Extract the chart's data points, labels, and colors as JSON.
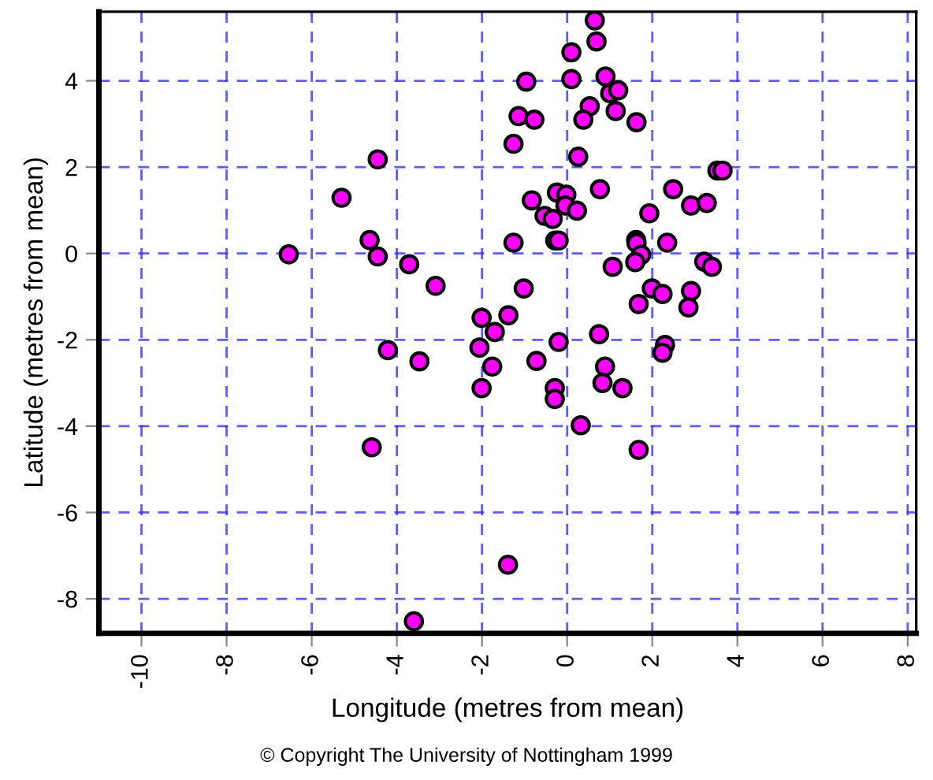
{
  "chart_data": {
    "type": "scatter",
    "xlabel": "Longitude (metres from mean)",
    "ylabel": "Latitude (metres from mean)",
    "annotations": [
      "© Copyright The University of Nottingham 1999"
    ],
    "xlim": [
      -11,
      8.2
    ],
    "ylim": [
      -8.8,
      5.6
    ],
    "xticks": [
      -10,
      -8,
      -6,
      -4,
      -2,
      0,
      2,
      4,
      6,
      8
    ],
    "yticks": [
      -8,
      -6,
      -4,
      -2,
      0,
      2,
      4
    ],
    "grid": true,
    "marker": "circle",
    "series": [
      {
        "color": "#ff00ff",
        "x": [
          -4.45,
          -5.3,
          -6.54,
          -4.64,
          -4.45,
          -3.71,
          -3.09,
          -2.01,
          0.65,
          0.69,
          0.1,
          -0.96,
          0.1,
          0.9,
          1.01,
          1.2,
          0.53,
          0.38,
          1.14,
          1.63,
          -1.14,
          -0.77,
          -1.26,
          0.26,
          3.53,
          3.65,
          0.77,
          2.49,
          -0.83,
          -0.24,
          -0.02,
          -0.04,
          0.23,
          -0.53,
          -0.34,
          1.93,
          2.91,
          3.28,
          -1.26,
          -0.28,
          -0.2,
          1.62,
          1.63,
          2.35,
          1.74,
          1.6,
          1.07,
          3.22,
          3.4,
          -1.02,
          1.99,
          2.24,
          2.91,
          2.85,
          1.68,
          -1.38,
          -1.7,
          -2.06,
          -1.76,
          -2.01,
          -0.2,
          -0.72,
          -0.29,
          -0.29,
          0.75,
          0.89,
          0.83,
          1.3,
          0.32,
          1.68,
          2.3,
          2.24,
          -1.39,
          -4.21,
          -3.47,
          -4.59,
          -3.6
        ],
        "values": [
          2.18,
          1.29,
          -0.02,
          0.31,
          -0.07,
          -0.25,
          -0.75,
          -1.49,
          5.4,
          4.91,
          4.66,
          3.98,
          4.04,
          4.1,
          3.71,
          3.78,
          3.41,
          3.1,
          3.3,
          3.04,
          3.18,
          3.1,
          2.54,
          2.24,
          1.92,
          1.92,
          1.49,
          1.49,
          1.23,
          1.41,
          1.36,
          1.11,
          0.99,
          0.87,
          0.8,
          0.93,
          1.11,
          1.17,
          0.25,
          0.3,
          0.3,
          0.31,
          0.24,
          0.25,
          -0.03,
          -0.2,
          -0.31,
          -0.19,
          -0.31,
          -0.81,
          -0.81,
          -0.94,
          -0.87,
          -1.25,
          -1.17,
          -1.43,
          -1.82,
          -2.18,
          -2.62,
          -3.12,
          -2.05,
          -2.49,
          -3.12,
          -3.37,
          -1.87,
          -2.62,
          -3.0,
          -3.12,
          -3.98,
          -4.55,
          -2.12,
          -2.3,
          -7.21,
          -2.24,
          -2.5,
          -4.49,
          -8.52
        ]
      }
    ]
  }
}
